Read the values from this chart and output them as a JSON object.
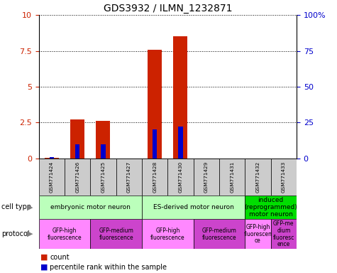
{
  "title": "GDS3932 / ILMN_1232871",
  "samples": [
    "GSM771424",
    "GSM771426",
    "GSM771425",
    "GSM771427",
    "GSM771428",
    "GSM771430",
    "GSM771429",
    "GSM771431",
    "GSM771432",
    "GSM771433"
  ],
  "count_values": [
    0.05,
    2.7,
    2.6,
    0.0,
    7.6,
    8.5,
    0.0,
    0.0,
    0.0,
    0.0
  ],
  "percentile_values": [
    0.08,
    1.0,
    1.0,
    0.0,
    2.0,
    2.2,
    0.0,
    0.0,
    0.0,
    0.0
  ],
  "ylim_left": [
    0,
    10
  ],
  "ylim_right": [
    0,
    100
  ],
  "yticks_left": [
    0,
    2.5,
    5,
    7.5,
    10
  ],
  "yticks_right": [
    0,
    25,
    50,
    75,
    100
  ],
  "ytick_labels_right": [
    "0",
    "25",
    "50",
    "75",
    "100%"
  ],
  "cell_type_groups": [
    {
      "label": "embryonic motor neuron",
      "start": 0,
      "end": 4,
      "color": "#bbffbb"
    },
    {
      "label": "ES-derived motor neuron",
      "start": 4,
      "end": 8,
      "color": "#bbffbb"
    },
    {
      "label": "induced\n(reprogrammed)\nmotor neuron",
      "start": 8,
      "end": 10,
      "color": "#00dd00"
    }
  ],
  "protocol_groups": [
    {
      "label": "GFP-high\nfluorescence",
      "start": 0,
      "end": 2,
      "color": "#ff88ff"
    },
    {
      "label": "GFP-medium\nfluorescence",
      "start": 2,
      "end": 4,
      "color": "#cc44cc"
    },
    {
      "label": "GFP-high\nfluorescence",
      "start": 4,
      "end": 6,
      "color": "#ff88ff"
    },
    {
      "label": "GFP-medium\nfluorescence",
      "start": 6,
      "end": 8,
      "color": "#cc44cc"
    },
    {
      "label": "GFP-high\nfluorescen\nce",
      "start": 8,
      "end": 9,
      "color": "#ff88ff"
    },
    {
      "label": "GFP-me\ndium\nfluoresc\nence",
      "start": 9,
      "end": 10,
      "color": "#cc44cc"
    }
  ],
  "bar_color": "#cc2200",
  "percentile_color": "#0000cc",
  "sample_bg_color": "#cccccc",
  "legend_count_color": "#cc2200",
  "legend_percentile_color": "#0000cc",
  "tick_label_color_left": "#cc2200",
  "tick_label_color_right": "#0000cc"
}
